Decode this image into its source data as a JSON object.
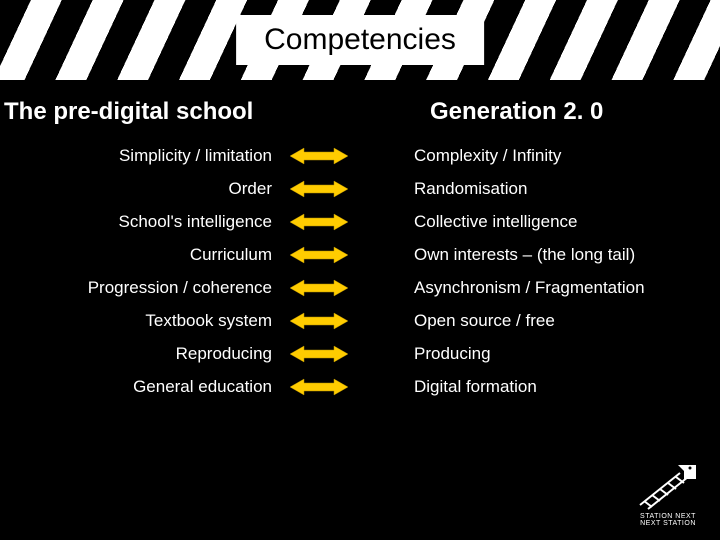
{
  "title": "Competencies",
  "left_header": "The pre-digital school",
  "right_header": "Generation 2. 0",
  "arrow_color": "#ffcc00",
  "rows": [
    {
      "left": "Simplicity / limitation",
      "right": "Complexity / Infinity"
    },
    {
      "left": "Order",
      "right": "Randomisation"
    },
    {
      "left": "School's intelligence",
      "right": "Collective intelligence"
    },
    {
      "left": "Curriculum",
      "right": "Own interests – (the long tail)"
    },
    {
      "left": "Progression / coherence",
      "right": "Asynchronism /  Fragmentation"
    },
    {
      "left": "Textbook system",
      "right": "Open source / free"
    },
    {
      "left": "Reproducing",
      "right": "Producing"
    },
    {
      "left": "General education",
      "right": "Digital formation"
    }
  ],
  "logo": {
    "line1": "STATION NEXT",
    "line2": "NEXT STATION"
  }
}
